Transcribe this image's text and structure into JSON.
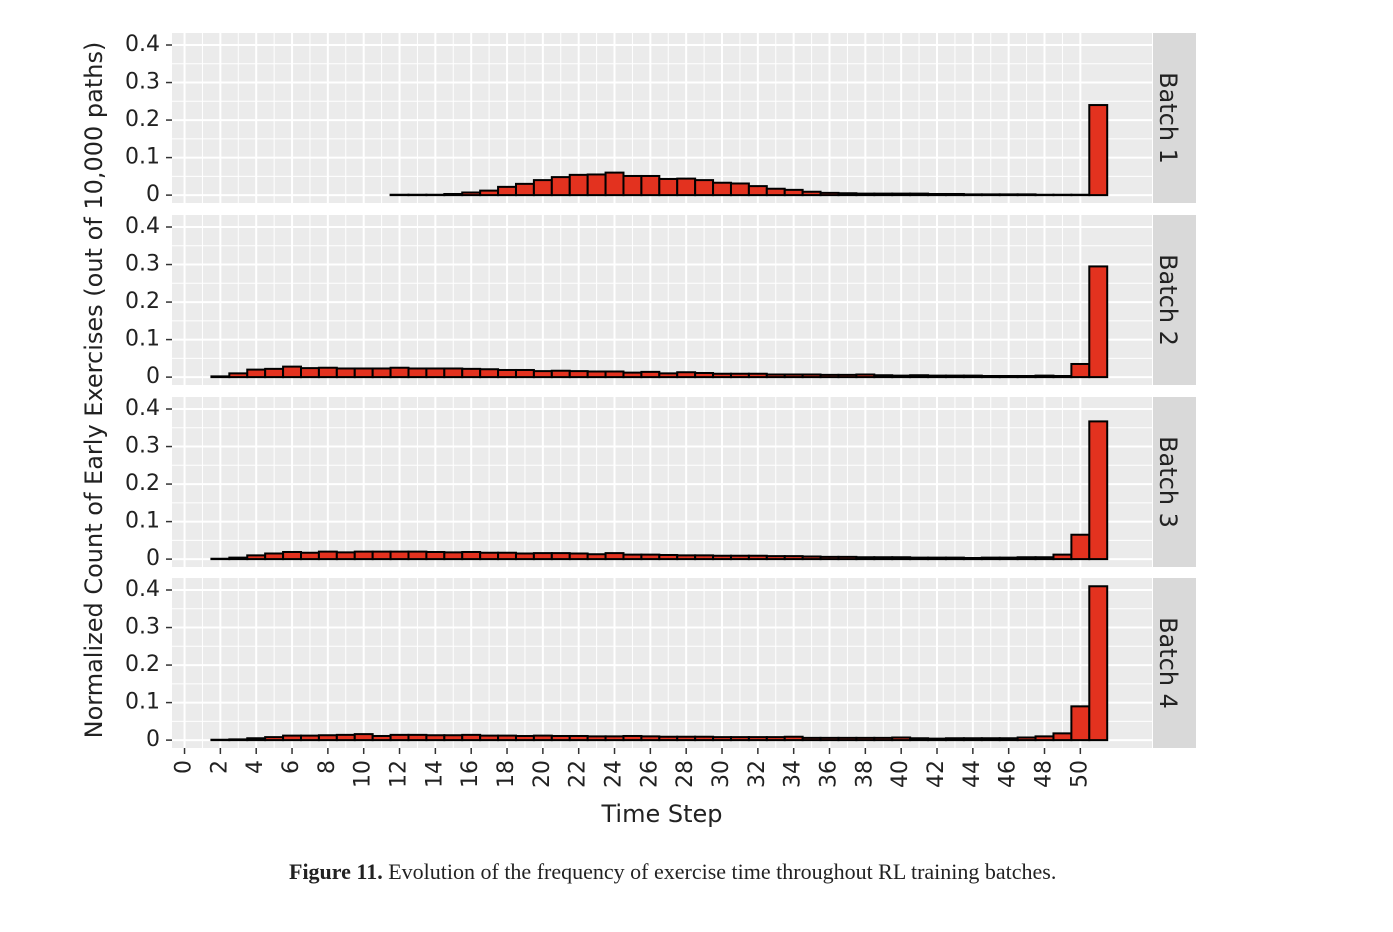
{
  "chart_data": {
    "type": "bar",
    "x_label": "Time Step",
    "y_label": "Normalized Count of Early Exercises (out of 10,000 paths)",
    "x": [
      2,
      3,
      4,
      5,
      6,
      7,
      8,
      9,
      10,
      11,
      12,
      13,
      14,
      15,
      16,
      17,
      18,
      19,
      20,
      21,
      22,
      23,
      24,
      25,
      26,
      27,
      28,
      29,
      30,
      31,
      32,
      33,
      34,
      35,
      36,
      37,
      38,
      39,
      40,
      41,
      42,
      43,
      44,
      45,
      46,
      47,
      48,
      49,
      50,
      51
    ],
    "xlim": [
      -0.7,
      54
    ],
    "xticks": [
      0,
      2,
      4,
      6,
      8,
      10,
      12,
      14,
      16,
      18,
      20,
      22,
      24,
      26,
      28,
      30,
      32,
      34,
      36,
      38,
      40,
      42,
      44,
      46,
      48,
      50
    ],
    "ylim": [
      -0.021,
      0.432
    ],
    "yticks": [
      0,
      0.1,
      0.2,
      0.3,
      0.4
    ],
    "grid": true,
    "series": [
      {
        "name": "Batch 1",
        "color": "#e3321f",
        "values": [
          0,
          0,
          0,
          0,
          0,
          0,
          0,
          0,
          0,
          0,
          0.001,
          0.001,
          0.001,
          0.003,
          0.007,
          0.012,
          0.022,
          0.03,
          0.04,
          0.048,
          0.054,
          0.055,
          0.06,
          0.051,
          0.051,
          0.043,
          0.044,
          0.04,
          0.033,
          0.031,
          0.024,
          0.017,
          0.014,
          0.009,
          0.006,
          0.005,
          0.004,
          0.004,
          0.004,
          0.004,
          0.003,
          0.003,
          0.002,
          0.002,
          0.002,
          0.002,
          0.001,
          0.001,
          0.001,
          0.24
        ]
      },
      {
        "name": "Batch 2",
        "color": "#e3321f",
        "values": [
          0.002,
          0.01,
          0.02,
          0.022,
          0.028,
          0.024,
          0.025,
          0.023,
          0.023,
          0.023,
          0.025,
          0.023,
          0.023,
          0.023,
          0.022,
          0.021,
          0.019,
          0.019,
          0.016,
          0.017,
          0.016,
          0.015,
          0.015,
          0.012,
          0.014,
          0.01,
          0.013,
          0.011,
          0.009,
          0.009,
          0.009,
          0.007,
          0.007,
          0.007,
          0.006,
          0.006,
          0.007,
          0.005,
          0.004,
          0.005,
          0.004,
          0.004,
          0.004,
          0.003,
          0.003,
          0.003,
          0.004,
          0.003,
          0.035,
          0.295
        ]
      },
      {
        "name": "Batch 3",
        "color": "#e3321f",
        "values": [
          0.001,
          0.004,
          0.01,
          0.015,
          0.019,
          0.017,
          0.02,
          0.018,
          0.02,
          0.02,
          0.02,
          0.02,
          0.019,
          0.018,
          0.019,
          0.017,
          0.017,
          0.015,
          0.016,
          0.016,
          0.015,
          0.013,
          0.016,
          0.012,
          0.012,
          0.011,
          0.01,
          0.01,
          0.009,
          0.009,
          0.009,
          0.008,
          0.008,
          0.007,
          0.006,
          0.006,
          0.005,
          0.005,
          0.005,
          0.004,
          0.004,
          0.004,
          0.003,
          0.004,
          0.004,
          0.005,
          0.005,
          0.012,
          0.065,
          0.367
        ]
      },
      {
        "name": "Batch 4",
        "color": "#e3321f",
        "values": [
          0.001,
          0.002,
          0.005,
          0.008,
          0.012,
          0.012,
          0.013,
          0.014,
          0.016,
          0.011,
          0.014,
          0.014,
          0.013,
          0.013,
          0.014,
          0.012,
          0.012,
          0.011,
          0.012,
          0.011,
          0.011,
          0.01,
          0.01,
          0.011,
          0.01,
          0.009,
          0.009,
          0.009,
          0.008,
          0.008,
          0.008,
          0.008,
          0.009,
          0.006,
          0.006,
          0.006,
          0.006,
          0.006,
          0.007,
          0.005,
          0.004,
          0.005,
          0.005,
          0.005,
          0.005,
          0.007,
          0.01,
          0.018,
          0.09,
          0.41
        ]
      }
    ]
  },
  "caption": {
    "label": "Figure 11.",
    "text": "Evolution of the frequency of exercise time throughout RL training batches."
  }
}
